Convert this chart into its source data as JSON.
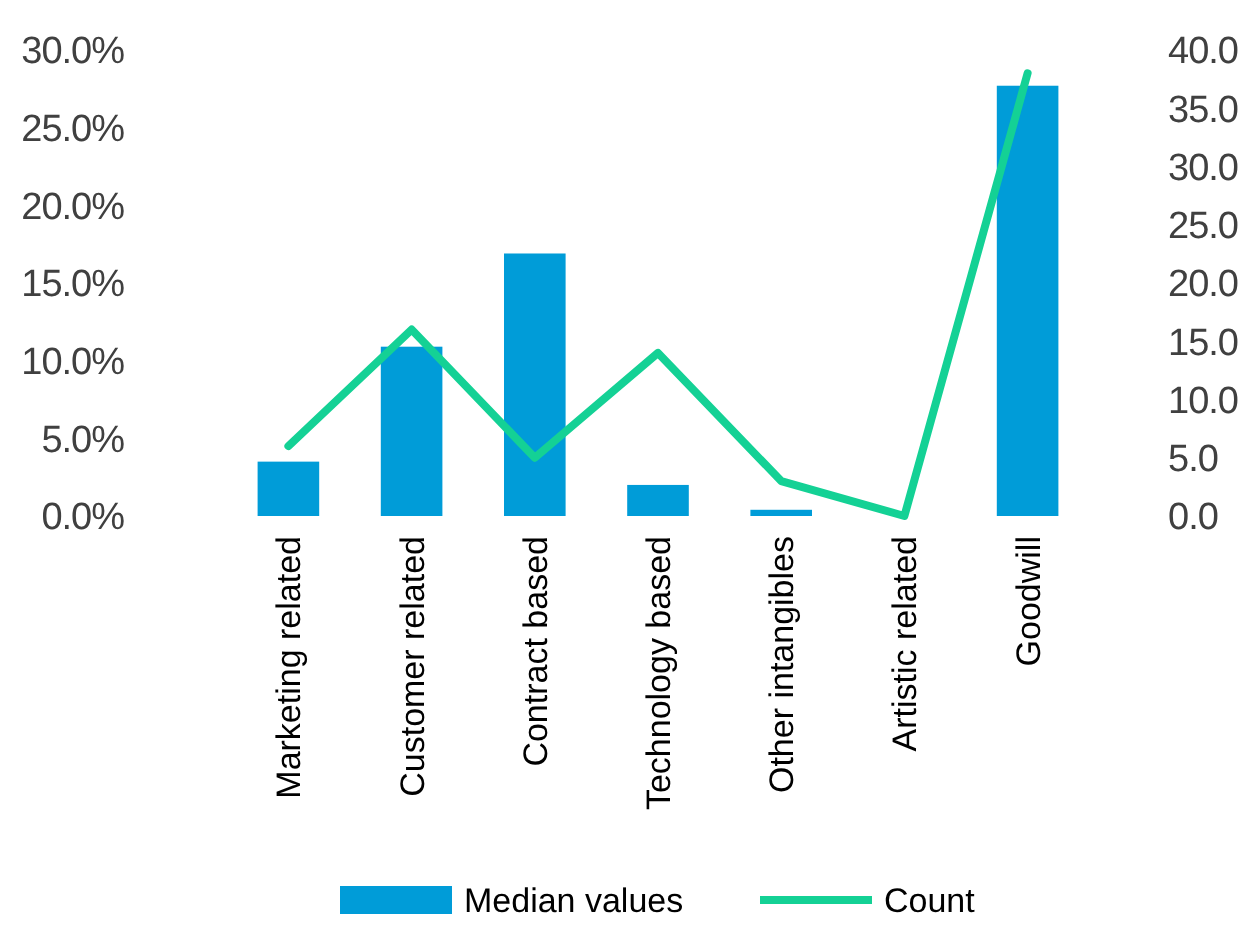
{
  "chart_data": {
    "type": "bar",
    "categories": [
      "Marketing related",
      "Customer related",
      "Contract based",
      "Technology based",
      "Other intangibles",
      "Artistic related",
      "Goodwill"
    ],
    "series": [
      {
        "name": "Median values",
        "color": "#009cd8",
        "values": [
          3.5,
          10.9,
          16.9,
          2.0,
          0.4,
          0,
          27.7
        ]
      },
      {
        "name": "Count",
        "type": "line",
        "axis": "y2",
        "color": "#14d195",
        "values": [
          6,
          16,
          5,
          14,
          3,
          0,
          38
        ]
      }
    ],
    "ylim": [
      0,
      30
    ],
    "yticks": [
      {
        "value": 0,
        "label": "0.0%"
      },
      {
        "value": 5,
        "label": "5.0%"
      },
      {
        "value": 10,
        "label": "10.0%"
      },
      {
        "value": 15,
        "label": "15.0%"
      },
      {
        "value": 20,
        "label": "20.0%"
      },
      {
        "value": 25,
        "label": "25.0%"
      },
      {
        "value": 30,
        "label": "30.0%"
      }
    ],
    "y2lim": [
      0,
      40
    ],
    "y2ticks": [
      {
        "value": 0,
        "label": "0.0"
      },
      {
        "value": 5,
        "label": "5.0"
      },
      {
        "value": 10,
        "label": "10.0"
      },
      {
        "value": 15,
        "label": "15.0"
      },
      {
        "value": 20,
        "label": "20.0"
      },
      {
        "value": 25,
        "label": "25.0"
      },
      {
        "value": 30,
        "label": "30.0"
      },
      {
        "value": 35,
        "label": "35.0"
      },
      {
        "value": 40,
        "label": "40.0"
      }
    ],
    "legend": "bottom",
    "line_style": "solid",
    "marker": "none"
  }
}
